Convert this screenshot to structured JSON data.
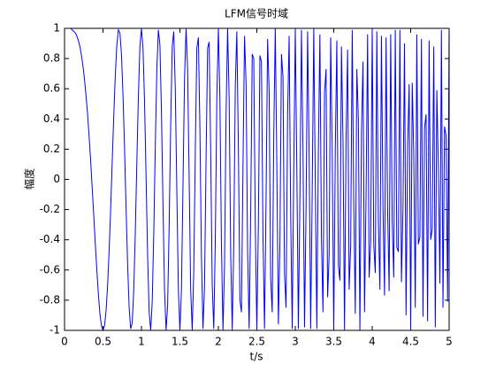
{
  "chart_data": {
    "type": "line",
    "title": "LFM信号时域",
    "x_label": "t/s",
    "y_label": "幅度",
    "xlim": [
      0,
      5
    ],
    "xticks": [
      0,
      0.5,
      1,
      1.5,
      2,
      2.5,
      3,
      3.5,
      4,
      4.5,
      5
    ],
    "ylim": [
      -1,
      1
    ],
    "yticks": [
      -1,
      -0.8,
      -0.6,
      -0.4,
      -0.2,
      0,
      0.2,
      0.4,
      0.6,
      0.8,
      1
    ],
    "grid": false,
    "color": "#0000ff",
    "x": [
      0,
      0.02,
      0.04,
      0.06,
      0.08,
      0.1,
      0.12,
      0.14,
      0.16,
      0.18,
      0.2,
      0.22,
      0.24,
      0.26,
      0.28,
      0.3,
      0.32,
      0.34,
      0.36,
      0.38,
      0.4,
      0.42,
      0.44,
      0.46,
      0.48,
      0.5,
      0.52,
      0.54,
      0.56,
      0.58,
      0.6,
      0.62,
      0.64,
      0.66,
      0.68,
      0.7,
      0.72,
      0.74,
      0.76,
      0.78,
      0.8,
      0.82,
      0.84,
      0.86,
      0.88,
      0.9,
      0.92,
      0.94,
      0.96,
      0.98,
      1,
      1.02,
      1.04,
      1.06,
      1.08,
      1.1,
      1.12,
      1.14,
      1.16,
      1.18,
      1.2,
      1.22,
      1.24,
      1.26,
      1.28,
      1.3,
      1.32,
      1.34,
      1.36,
      1.38,
      1.4,
      1.42,
      1.44,
      1.46,
      1.48,
      1.5,
      1.52,
      1.54,
      1.56,
      1.58,
      1.6,
      1.62,
      1.64,
      1.66,
      1.68,
      1.7,
      1.72,
      1.74,
      1.76,
      1.78,
      1.8,
      1.82,
      1.84,
      1.86,
      1.88,
      1.9,
      1.92,
      1.94,
      1.96,
      1.98,
      2,
      2.02,
      2.04,
      2.06,
      2.08,
      2.1,
      2.12,
      2.14,
      2.16,
      2.18,
      2.2,
      2.22,
      2.24,
      2.26,
      2.28,
      2.3,
      2.32,
      2.34,
      2.36,
      2.38,
      2.4,
      2.42,
      2.44,
      2.46,
      2.48,
      2.5,
      2.52,
      2.54,
      2.56,
      2.58,
      2.6,
      2.62,
      2.64,
      2.66,
      2.68,
      2.7,
      2.72,
      2.74,
      2.76,
      2.78,
      2.8,
      2.82,
      2.84,
      2.86,
      2.88,
      2.9,
      2.92,
      2.94,
      2.96,
      2.98,
      3,
      3.02,
      3.04,
      3.06,
      3.08,
      3.1,
      3.12,
      3.14,
      3.16,
      3.18,
      3.2,
      3.22,
      3.24,
      3.26,
      3.28,
      3.3,
      3.32,
      3.34,
      3.36,
      3.38,
      3.4,
      3.42,
      3.44,
      3.46,
      3.48,
      3.5,
      3.52,
      3.54,
      3.56,
      3.58,
      3.6,
      3.62,
      3.64,
      3.66,
      3.68,
      3.7,
      3.72,
      3.74,
      3.76,
      3.78,
      3.8,
      3.82,
      3.84,
      3.86,
      3.88,
      3.9,
      3.92,
      3.94,
      3.96,
      3.98,
      4,
      4.02,
      4.04,
      4.06,
      4.08,
      4.1,
      4.12,
      4.14,
      4.16,
      4.18,
      4.2,
      4.22,
      4.24,
      4.26,
      4.28,
      4.3,
      4.32,
      4.34,
      4.36,
      4.38,
      4.4,
      4.42,
      4.44,
      4.46,
      4.48,
      4.5,
      4.52,
      4.54,
      4.56,
      4.58,
      4.6,
      4.62,
      4.64,
      4.66,
      4.68,
      4.7,
      4.72,
      4.74,
      4.76,
      4.78,
      4.8,
      4.82,
      4.84,
      4.86,
      4.88,
      4.9,
      4.92,
      4.94,
      4.96,
      4.98,
      5
    ],
    "values": [
      1,
      1,
      1,
      1,
      1,
      0.99,
      0.98,
      0.97,
      0.95,
      0.92,
      0.88,
      0.82,
      0.75,
      0.66,
      0.55,
      0.43,
      0.28,
      0.12,
      -0.06,
      -0.24,
      -0.43,
      -0.6,
      -0.76,
      -0.89,
      -0.97,
      -1,
      -0.97,
      -0.87,
      -0.7,
      -0.47,
      -0.19,
      0.12,
      0.42,
      0.69,
      0.89,
      0.99,
      0.97,
      0.83,
      0.56,
      0.21,
      -0.19,
      -0.56,
      -0.85,
      -0.99,
      -0.95,
      -0.73,
      -0.35,
      0.11,
      0.55,
      0.88,
      1,
      0.87,
      0.52,
      0.02,
      -0.5,
      -0.88,
      -1,
      -0.81,
      -0.36,
      0.22,
      0.73,
      0.99,
      0.89,
      0.45,
      -0.17,
      -0.73,
      -1,
      -0.84,
      -0.31,
      0.36,
      0.88,
      0.98,
      0.6,
      -0.08,
      -0.73,
      -1,
      -0.73,
      -0.04,
      0.67,
      1,
      0.73,
      0.01,
      -0.73,
      -1,
      -0.61,
      0.19,
      0.87,
      0.94,
      0.34,
      -0.52,
      -0.99,
      -0.71,
      0.13,
      0.87,
      0.91,
      0.19,
      -0.7,
      -0.99,
      -0.41,
      0.54,
      1,
      0.53,
      -0.44,
      -1,
      -0.57,
      0.43,
      1,
      0.54,
      -0.49,
      -1,
      -0.43,
      0.62,
      0.98,
      0.22,
      -0.8,
      -0.88,
      0.09,
      0.95,
      0.64,
      -0.48,
      -0.99,
      -0.23,
      0.83,
      0.8,
      -0.31,
      -1,
      -0.3,
      0.82,
      0.78,
      -0.38,
      -0.99,
      -0.13,
      0.93,
      0.58,
      -0.66,
      -0.88,
      0.29,
      1,
      0.09,
      -0.96,
      -0.43,
      0.83,
      0.68,
      -0.63,
      -0.85,
      0.43,
      0.95,
      -0.23,
      -0.99,
      0.07,
      1,
      0.06,
      -0.99,
      -0.14,
      0.99,
      0.19,
      -0.98,
      -0.19,
      0.98,
      0.16,
      -0.99,
      -0.08,
      1,
      -0.03,
      -0.99,
      0.19,
      0.96,
      -0.38,
      -0.88,
      0.58,
      0.73,
      -0.78,
      -0.5,
      0.94,
      0.18,
      -1,
      0.19,
      0.92,
      -0.57,
      -0.67,
      0.88,
      0.26,
      -1,
      0.26,
      0.86,
      -0.73,
      -0.44,
      0.99,
      -0.16,
      -0.89,
      0.73,
      0.4,
      -1,
      0.3,
      0.78,
      -0.88,
      -0.11,
      0.96,
      -0.65,
      -0.42,
      1,
      -0.43,
      -0.62,
      0.98,
      -0.27,
      -0.73,
      0.95,
      -0.18,
      -0.77,
      0.94,
      -0.19,
      -0.74,
      0.96,
      -0.28,
      -0.65,
      0.99,
      -0.45,
      -0.48,
      0.99,
      -0.68,
      -0.19,
      0.9,
      -0.9,
      0.21,
      0.63,
      -1,
      0.64,
      0.17,
      -0.85,
      0.96,
      -0.43,
      -0.38,
      0.93,
      -0.91,
      0.34,
      0.43,
      -0.94,
      0.92,
      -0.4,
      -0.33,
      0.88,
      -0.98,
      0.59,
      0.07,
      -0.69,
      0.99,
      -0.85,
      0.35,
      0.29,
      -0.81,
      1
    ]
  }
}
